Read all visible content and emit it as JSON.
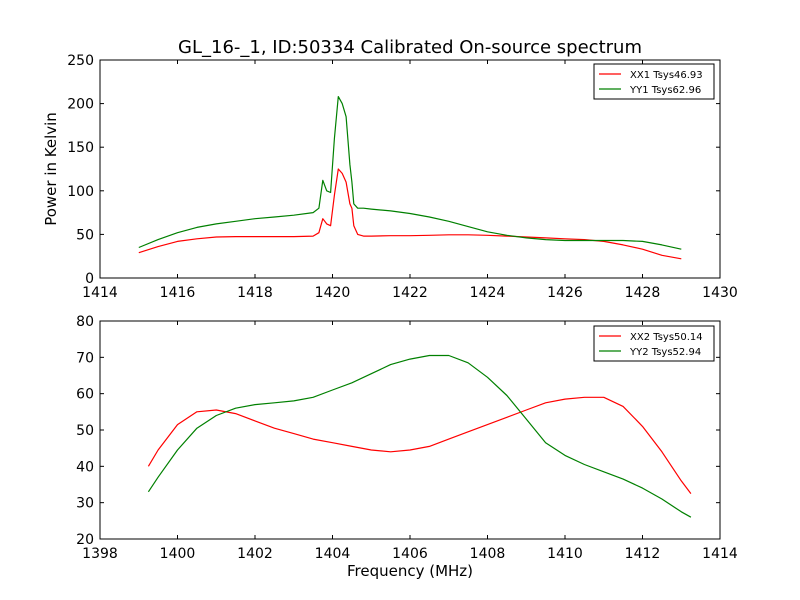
{
  "title": "GL_16-_1, ID:50334 Calibrated On-source spectrum",
  "chart_data": [
    {
      "type": "line",
      "title": "GL_16-_1, ID:50334 Calibrated On-source spectrum",
      "xlabel": "",
      "ylabel": "Power in Kelvin",
      "xlim": [
        1414,
        1430
      ],
      "ylim": [
        0,
        250
      ],
      "xticks": [
        1414,
        1416,
        1418,
        1420,
        1422,
        1424,
        1426,
        1428,
        1430
      ],
      "yticks": [
        0,
        50,
        100,
        150,
        200,
        250
      ],
      "xtick_labels": [
        "1414",
        "1416",
        "1418",
        "1420",
        "1422",
        "1424",
        "1426",
        "1428",
        "1430"
      ],
      "ytick_labels": [
        "0",
        "50",
        "100",
        "150",
        "200",
        "250"
      ],
      "grid": false,
      "legend_position": "top-right",
      "series": [
        {
          "name": "XX1 Tsys46.93",
          "color": "#ff0000",
          "x": [
            1415.0,
            1415.5,
            1416.0,
            1416.5,
            1417.0,
            1417.5,
            1418.0,
            1418.5,
            1419.0,
            1419.5,
            1419.65,
            1419.75,
            1419.85,
            1419.95,
            1420.05,
            1420.15,
            1420.25,
            1420.35,
            1420.45,
            1420.5,
            1420.55,
            1420.65,
            1420.8,
            1421.0,
            1421.5,
            1422.0,
            1422.5,
            1423.0,
            1423.5,
            1424.0,
            1424.5,
            1425.0,
            1425.5,
            1426.0,
            1426.5,
            1427.0,
            1427.5,
            1428.0,
            1428.5,
            1429.0
          ],
          "y": [
            29,
            36,
            42,
            45,
            47,
            47.5,
            47.5,
            47.5,
            47.5,
            48,
            52,
            68,
            62,
            60,
            95,
            125,
            120,
            110,
            85,
            80,
            60,
            50,
            48,
            48,
            48.5,
            48.5,
            49,
            49.5,
            49.5,
            49,
            48,
            47,
            46,
            45,
            44,
            42,
            38,
            33,
            26,
            22
          ]
        },
        {
          "name": "YY1 Tsys62.96",
          "color": "#008000",
          "x": [
            1415.0,
            1415.5,
            1416.0,
            1416.5,
            1417.0,
            1417.5,
            1418.0,
            1418.5,
            1419.0,
            1419.5,
            1419.65,
            1419.75,
            1419.85,
            1419.95,
            1420.05,
            1420.15,
            1420.25,
            1420.35,
            1420.45,
            1420.5,
            1420.55,
            1420.65,
            1420.8,
            1421.0,
            1421.5,
            1422.0,
            1422.5,
            1423.0,
            1423.5,
            1424.0,
            1424.5,
            1425.0,
            1425.5,
            1426.0,
            1426.5,
            1427.0,
            1427.5,
            1428.0,
            1428.5,
            1429.0
          ],
          "y": [
            35,
            44,
            52,
            58,
            62,
            65,
            68,
            70,
            72,
            75,
            80,
            112,
            100,
            98,
            160,
            208,
            200,
            185,
            130,
            110,
            85,
            80,
            80,
            79,
            77,
            74,
            70,
            65,
            59,
            53,
            49,
            46,
            44,
            43,
            43,
            43,
            43,
            42,
            38,
            33
          ]
        }
      ]
    },
    {
      "type": "line",
      "title": "",
      "xlabel": "Frequency (MHz)",
      "ylabel": "",
      "xlim": [
        1398,
        1414
      ],
      "ylim": [
        20,
        80
      ],
      "xticks": [
        1398,
        1400,
        1402,
        1404,
        1406,
        1408,
        1410,
        1412,
        1414
      ],
      "yticks": [
        20,
        30,
        40,
        50,
        60,
        70,
        80
      ],
      "xtick_labels": [
        "1398",
        "1400",
        "1402",
        "1404",
        "1406",
        "1408",
        "1410",
        "1412",
        "1414"
      ],
      "ytick_labels": [
        "20",
        "30",
        "40",
        "50",
        "60",
        "70",
        "80"
      ],
      "grid": false,
      "legend_position": "top-right",
      "series": [
        {
          "name": "XX2 Tsys50.14",
          "color": "#ff0000",
          "x": [
            1399.25,
            1399.5,
            1400.0,
            1400.5,
            1401.0,
            1401.5,
            1402.0,
            1402.5,
            1403.0,
            1403.5,
            1404.0,
            1404.5,
            1405.0,
            1405.5,
            1406.0,
            1406.5,
            1407.0,
            1407.5,
            1408.0,
            1408.5,
            1409.0,
            1409.5,
            1410.0,
            1410.5,
            1411.0,
            1411.5,
            1412.0,
            1412.5,
            1413.0,
            1413.25
          ],
          "y": [
            40,
            44.5,
            51.5,
            55,
            55.5,
            54.5,
            52.5,
            50.5,
            49,
            47.5,
            46.5,
            45.5,
            44.5,
            44,
            44.5,
            45.5,
            47.5,
            49.5,
            51.5,
            53.5,
            55.5,
            57.5,
            58.5,
            59,
            59,
            56.5,
            51,
            44,
            36,
            32.5
          ]
        },
        {
          "name": "YY2 Tsys52.94",
          "color": "#008000",
          "x": [
            1399.25,
            1399.5,
            1400.0,
            1400.5,
            1401.0,
            1401.5,
            1402.0,
            1402.5,
            1403.0,
            1403.5,
            1404.0,
            1404.5,
            1405.0,
            1405.5,
            1406.0,
            1406.5,
            1407.0,
            1407.5,
            1408.0,
            1408.5,
            1409.0,
            1409.5,
            1410.0,
            1410.5,
            1411.0,
            1411.5,
            1412.0,
            1412.5,
            1413.0,
            1413.25
          ],
          "y": [
            33,
            37,
            44.5,
            50.5,
            54,
            56,
            57,
            57.5,
            58,
            59,
            61,
            63,
            65.5,
            68,
            69.5,
            70.5,
            70.5,
            68.5,
            64.5,
            59.5,
            53,
            46.5,
            43,
            40.5,
            38.5,
            36.5,
            34,
            31,
            27.5,
            26
          ]
        }
      ]
    }
  ]
}
